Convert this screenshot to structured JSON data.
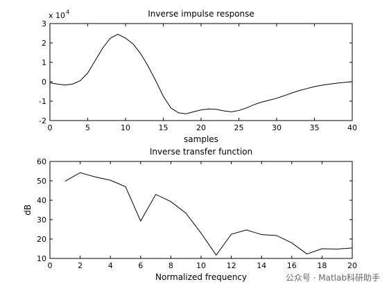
{
  "watermark": "公众号 · Matlab科研助手",
  "chart_data": [
    {
      "type": "line",
      "title": "Inverse impulse response",
      "xlabel": "samples",
      "ylabel": "",
      "y_exponent_label": "x 10",
      "y_exponent_power": "4",
      "xlim": [
        0,
        40
      ],
      "ylim": [
        -2,
        3
      ],
      "xticks": [
        0,
        5,
        10,
        15,
        20,
        25,
        30,
        35,
        40
      ],
      "yticks": [
        -2,
        -1,
        0,
        1,
        2,
        3
      ],
      "grid": false,
      "x": [
        0,
        1,
        2,
        3,
        4,
        5,
        6,
        7,
        8,
        9,
        10,
        11,
        12,
        13,
        14,
        15,
        16,
        17,
        18,
        19,
        20,
        21,
        22,
        23,
        24,
        25,
        26,
        27,
        28,
        29,
        30,
        31,
        32,
        33,
        34,
        35,
        36,
        37,
        38,
        39,
        40
      ],
      "y": [
        -0.05,
        -0.12,
        -0.17,
        -0.12,
        0.05,
        0.45,
        1.1,
        1.75,
        2.25,
        2.45,
        2.25,
        1.95,
        1.45,
        0.8,
        0.05,
        -0.75,
        -1.35,
        -1.6,
        -1.65,
        -1.55,
        -1.45,
        -1.4,
        -1.42,
        -1.5,
        -1.55,
        -1.48,
        -1.35,
        -1.18,
        -1.05,
        -0.95,
        -0.85,
        -0.72,
        -0.58,
        -0.45,
        -0.35,
        -0.25,
        -0.18,
        -0.12,
        -0.07,
        -0.03,
        0.0
      ],
      "y_scale_factor": 10000
    },
    {
      "type": "line",
      "title": "Inverse transfer function",
      "xlabel": "Normalized frequency",
      "ylabel": "dB",
      "xlim": [
        0,
        20
      ],
      "ylim": [
        10,
        60
      ],
      "xticks": [
        0,
        2,
        4,
        6,
        8,
        10,
        12,
        14,
        16,
        18,
        20
      ],
      "yticks": [
        10,
        20,
        30,
        40,
        50,
        60
      ],
      "grid": false,
      "x": [
        1,
        2,
        3,
        4,
        5,
        6,
        7,
        8,
        9,
        10,
        11,
        12,
        13,
        14,
        15,
        16,
        17,
        18,
        19,
        20
      ],
      "y": [
        49.8,
        54.2,
        52.0,
        50.3,
        47.0,
        29.3,
        43.0,
        39.3,
        33.3,
        23.0,
        11.7,
        22.5,
        24.7,
        22.3,
        21.8,
        18.0,
        12.3,
        15.0,
        14.8,
        15.4
      ]
    }
  ]
}
